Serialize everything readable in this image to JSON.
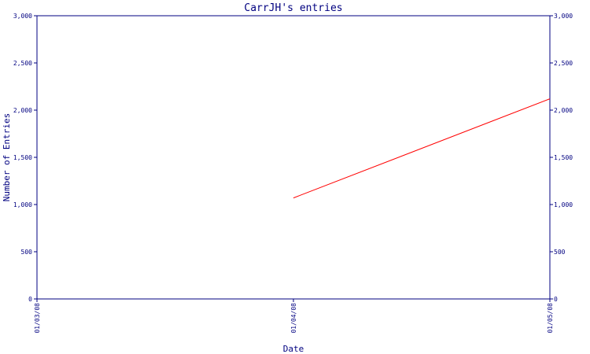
{
  "chart_data": {
    "type": "line",
    "title": "CarrJH's entries",
    "xlabel": "Date",
    "ylabel": "Number of Entries",
    "x_ticks": [
      "01/03/08",
      "01/04/08",
      "01/05/08"
    ],
    "y_ticks": [
      "0",
      "500",
      "1,000",
      "1,500",
      "2,000",
      "2,500",
      "3,000"
    ],
    "ylim": [
      0,
      3000
    ],
    "xlim": [
      "01/03/08",
      "01/05/08"
    ],
    "grid": false,
    "series": [
      {
        "color": "#ff0000",
        "points": [
          {
            "x": "01/04/08",
            "y": 1070
          },
          {
            "x": "01/05/08",
            "y": 2120
          }
        ]
      }
    ],
    "axis_color": "#000080"
  }
}
